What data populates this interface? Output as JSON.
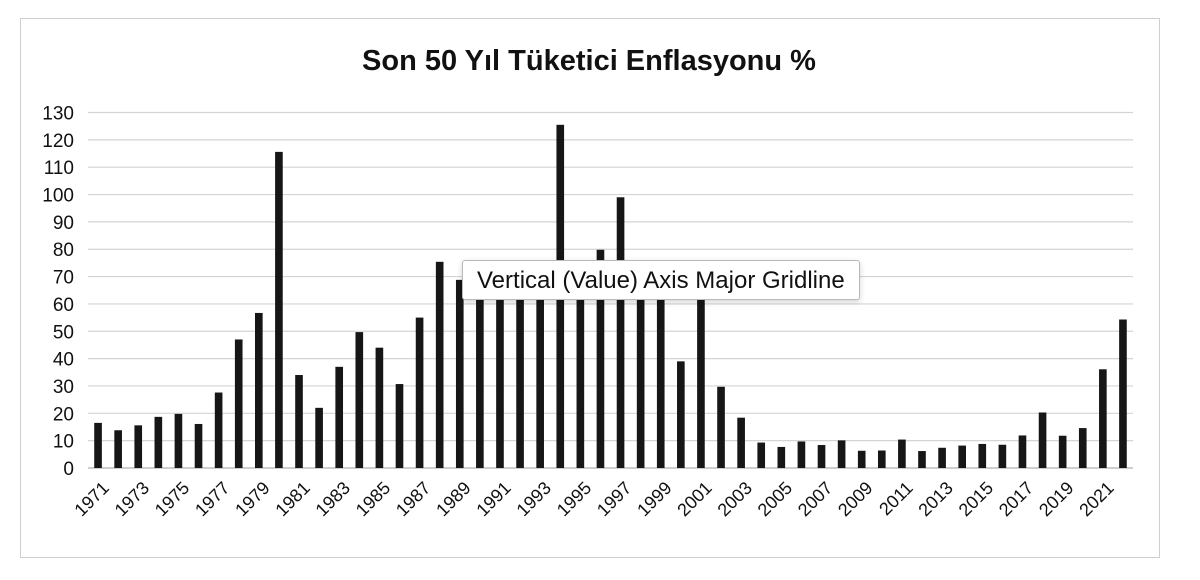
{
  "tooltip": {
    "text": "Vertical (Value) Axis Major Gridline"
  },
  "colors": {
    "bar": "#161616",
    "grid": "#d4d4d4",
    "axis": "#bdbdbd"
  },
  "chart_data": {
    "type": "bar",
    "title": "Son 50 Yıl Tüketici Enflasyonu %",
    "xlabel": "",
    "ylabel": "",
    "ylim": [
      0,
      130
    ],
    "yticks": [
      0,
      10,
      20,
      30,
      40,
      50,
      60,
      70,
      80,
      90,
      100,
      110,
      120,
      130
    ],
    "grid": true,
    "legend": "none",
    "categories": [
      1971,
      1972,
      1973,
      1974,
      1975,
      1976,
      1977,
      1978,
      1979,
      1980,
      1981,
      1982,
      1983,
      1984,
      1985,
      1986,
      1987,
      1988,
      1989,
      1990,
      1991,
      1992,
      1993,
      1994,
      1995,
      1996,
      1997,
      1998,
      1999,
      2000,
      2001,
      2002,
      2003,
      2004,
      2005,
      2006,
      2007,
      2008,
      2009,
      2010,
      2011,
      2012,
      2013,
      2014,
      2015,
      2016,
      2017,
      2018,
      2019,
      2020,
      2021,
      2022
    ],
    "values": [
      16.5,
      13.8,
      15.6,
      18.7,
      19.8,
      16.1,
      27.6,
      47,
      56.7,
      115.6,
      34,
      22,
      37,
      49.7,
      44,
      30.7,
      55,
      75.4,
      68.8,
      63.2,
      66,
      70.1,
      66.1,
      125.5,
      76,
      79.8,
      99,
      69.7,
      68.8,
      39,
      68.5,
      29.7,
      18.4,
      9.3,
      7.7,
      9.7,
      8.4,
      10.1,
      6.3,
      6.4,
      10.4,
      6.2,
      7.4,
      8.2,
      8.8,
      8.5,
      11.9,
      20.3,
      11.8,
      14.6,
      36.1,
      54.3
    ],
    "xtick_labels": [
      "1971",
      "1973",
      "1975",
      "1977",
      "1979",
      "1981",
      "1983",
      "1985",
      "1987",
      "1989",
      "1991",
      "1993",
      "1995",
      "1997",
      "1999",
      "2001",
      "2003",
      "2005",
      "2007",
      "2009",
      "2011",
      "2013",
      "2015",
      "2017",
      "2019",
      "2021"
    ]
  }
}
